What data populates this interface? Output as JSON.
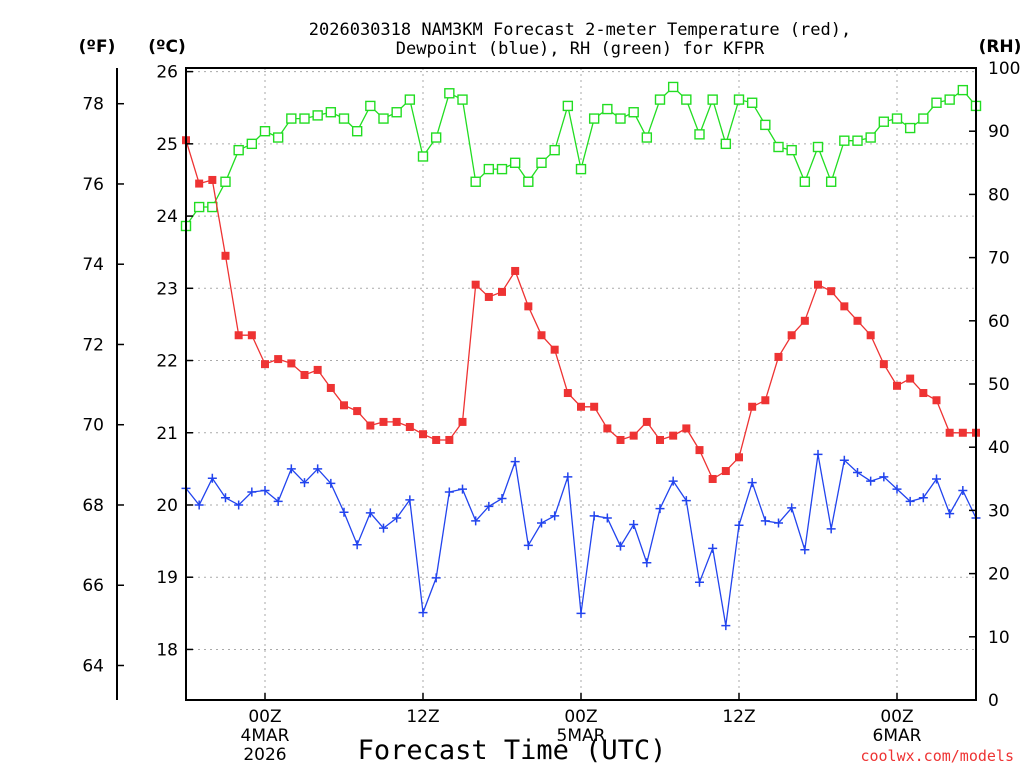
{
  "chart_data": {
    "type": "line",
    "title_line1": "2026030318 NAM3KM Forecast 2-meter Temperature (red),",
    "title_line2": "Dewpoint (blue), RH (green) for KFPR",
    "xlabel": "Forecast Time (UTC)",
    "credit": "coolwx.com/models",
    "units": {
      "fahrenheit": "(ºF)",
      "celsius": "(ºC)",
      "rh": "(RH)"
    },
    "colors": {
      "temperature": "#ee3333",
      "dewpoint": "#2244ee",
      "rh": "#22dd22",
      "grid": "#aaaaaa"
    },
    "x": {
      "min_hour": 0,
      "max_hour": 60,
      "date_labels": [
        "4MAR",
        "5MAR",
        "6MAR"
      ],
      "year_label": "2026"
    },
    "x_ticks": [
      {
        "hour": 6,
        "label": "00Z",
        "date": "4MAR",
        "year": "2026"
      },
      {
        "hour": 18,
        "label": "12Z"
      },
      {
        "hour": 30,
        "label": "00Z",
        "date": "5MAR"
      },
      {
        "hour": 42,
        "label": "12Z"
      },
      {
        "hour": 54,
        "label": "00Z",
        "date": "6MAR"
      }
    ],
    "y_celsius": {
      "min": 17.3,
      "max": 26.05,
      "ticks": [
        "18",
        "19",
        "20",
        "21",
        "22",
        "23",
        "24",
        "25",
        "26"
      ]
    },
    "y_fahrenheit": {
      "ticks": [
        "64",
        "66",
        "68",
        "70",
        "72",
        "74",
        "76",
        "78"
      ]
    },
    "y_rh": {
      "min": 0,
      "max": 100,
      "ticks": [
        "0",
        "10",
        "20",
        "30",
        "40",
        "50",
        "60",
        "70",
        "80",
        "90",
        "100"
      ]
    },
    "series": [
      {
        "name": "2-meter Temperature",
        "unit": "C",
        "marker": "filled-square",
        "values": [
          25.05,
          24.45,
          24.5,
          23.45,
          22.35,
          22.35,
          21.95,
          22.02,
          21.96,
          21.8,
          21.87,
          21.62,
          21.38,
          21.3,
          21.1,
          21.15,
          21.15,
          21.08,
          20.98,
          20.9,
          20.9,
          21.15,
          23.05,
          22.88,
          22.95,
          23.24,
          22.75,
          22.35,
          22.15,
          21.55,
          21.36,
          21.36,
          21.06,
          20.9,
          20.96,
          21.15,
          20.9,
          20.96,
          21.06,
          20.76,
          20.36,
          20.47,
          20.66,
          21.36,
          21.45,
          22.05,
          22.35,
          22.55,
          23.05,
          22.96,
          22.75,
          22.55,
          22.35,
          21.95,
          21.65,
          21.75,
          21.55,
          21.45,
          21.0,
          21.0,
          21.0
        ]
      },
      {
        "name": "Dewpoint",
        "unit": "C",
        "marker": "plus",
        "values": [
          20.23,
          20.0,
          20.37,
          20.1,
          20.0,
          20.18,
          20.2,
          20.05,
          20.5,
          20.31,
          20.5,
          20.3,
          19.9,
          19.45,
          19.89,
          19.68,
          19.82,
          20.07,
          18.51,
          18.99,
          20.18,
          20.22,
          19.78,
          19.98,
          20.09,
          20.6,
          19.44,
          19.75,
          19.85,
          20.39,
          18.5,
          19.85,
          19.82,
          19.43,
          19.73,
          19.2,
          19.95,
          20.33,
          20.06,
          18.93,
          19.4,
          18.33,
          19.72,
          20.31,
          19.78,
          19.75,
          19.96,
          19.38,
          20.7,
          19.67,
          20.62,
          20.45,
          20.33,
          20.39,
          20.22,
          20.05,
          20.1,
          20.36,
          19.88,
          20.2,
          19.82
        ]
      },
      {
        "name": "RH",
        "unit": "%",
        "marker": "open-square",
        "values": [
          75,
          78,
          78,
          82,
          87,
          88,
          90,
          89,
          92,
          92,
          92.5,
          93,
          92,
          90,
          94,
          92,
          93,
          95,
          86,
          89,
          96,
          95,
          82,
          84,
          84,
          85,
          82,
          85,
          87,
          94,
          84,
          92,
          93.5,
          92,
          93,
          89,
          95,
          97,
          95,
          89.5,
          95,
          88,
          95,
          94.5,
          91,
          87.5,
          87,
          82,
          87.5,
          82,
          88.5,
          88.5,
          89,
          91.5,
          92,
          90.5,
          92,
          94.5,
          95,
          96.5,
          94
        ]
      }
    ]
  }
}
